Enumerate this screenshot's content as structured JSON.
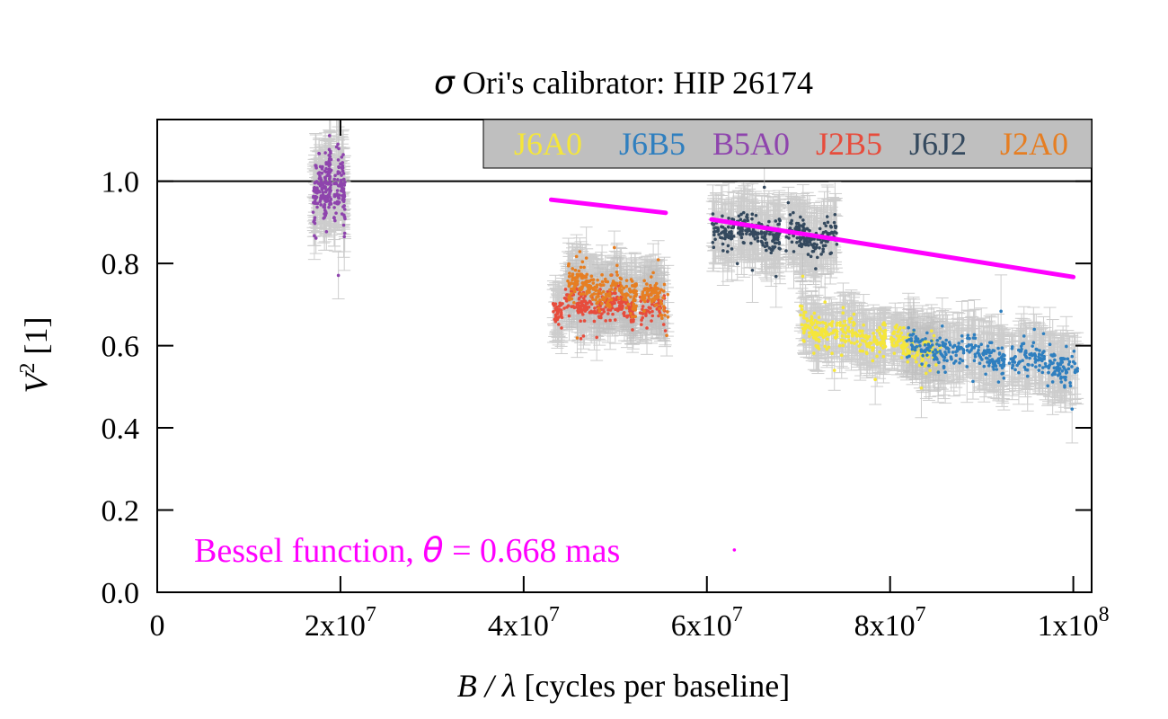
{
  "chart_data": {
    "type": "scatter",
    "title": {
      "symbol": "σ",
      "text": " Ori's calibrator: HIP 26174"
    },
    "xlabel": {
      "symbol": "B / λ",
      "text": " [cycles per baseline]"
    },
    "ylabel": {
      "base": "V",
      "sup": "2",
      "text": " [1]"
    },
    "xlim": [
      0,
      102000000
    ],
    "ylim": [
      0,
      1.15
    ],
    "x_ticks": [
      {
        "value": 0,
        "mantissa": "0",
        "exp": ""
      },
      {
        "value": 20000000,
        "mantissa": "2x10",
        "exp": "7"
      },
      {
        "value": 40000000,
        "mantissa": "4x10",
        "exp": "7"
      },
      {
        "value": 60000000,
        "mantissa": "6x10",
        "exp": "7"
      },
      {
        "value": 80000000,
        "mantissa": "8x10",
        "exp": "7"
      },
      {
        "value": 100000000,
        "mantissa": "1x10",
        "exp": "8"
      }
    ],
    "y_ticks": [
      {
        "value": 0.0,
        "label": "0.0"
      },
      {
        "value": 0.2,
        "label": "0.2"
      },
      {
        "value": 0.4,
        "label": "0.4"
      },
      {
        "value": 0.6,
        "label": "0.6"
      },
      {
        "value": 0.8,
        "label": "0.8"
      },
      {
        "value": 1.0,
        "label": "1.0"
      }
    ],
    "reference_line": {
      "y": 1.0,
      "color": "#000000"
    },
    "grid": false,
    "legend": {
      "placement": "top-right",
      "background": "#bfbfbf",
      "entries": [
        {
          "name": "J6A0",
          "color": "#f5e63a"
        },
        {
          "name": "J6B5",
          "color": "#2f7fbf"
        },
        {
          "name": "B5A0",
          "color": "#8e44ad"
        },
        {
          "name": "J2B5",
          "color": "#e74c3c"
        },
        {
          "name": "J6J2",
          "color": "#34495e"
        },
        {
          "name": "J2A0",
          "color": "#e67e22"
        }
      ]
    },
    "error_bar_color": "#bdbdbd",
    "series": [
      {
        "name": "B5A0",
        "color": "#8e44ad",
        "x_range": [
          17000000,
          20500000
        ],
        "y_start": 0.985,
        "y_end": 0.985,
        "spread": 0.04,
        "err": 0.055,
        "n": 260,
        "seed": 11,
        "gap": [
          19000000,
          19300000
        ]
      },
      {
        "name": "J2B5",
        "color": "#e74c3c",
        "x_range": [
          43200000,
          55500000
        ],
        "y_start": 0.7,
        "y_end": 0.69,
        "spread": 0.018,
        "err": 0.05,
        "n": 320,
        "seed": 23,
        "gap": [
          52000000,
          52700000
        ]
      },
      {
        "name": "J2A0",
        "color": "#e67e22",
        "x_range": [
          44800000,
          55800000
        ],
        "y_start": 0.755,
        "y_end": 0.71,
        "spread": 0.02,
        "err": 0.055,
        "n": 320,
        "seed": 37,
        "gap": [
          52300000,
          52900000
        ]
      },
      {
        "name": "J6J2",
        "color": "#34495e",
        "x_range": [
          60500000,
          74200000
        ],
        "y_start": 0.885,
        "y_end": 0.86,
        "spread": 0.02,
        "err": 0.06,
        "n": 360,
        "seed": 53,
        "gap": [
          68000000,
          68600000
        ]
      },
      {
        "name": "J6A0",
        "color": "#f5e63a",
        "x_range": [
          70200000,
          85500000
        ],
        "y_start": 0.65,
        "y_end": 0.585,
        "spread": 0.02,
        "err": 0.05,
        "n": 360,
        "seed": 71,
        "gap": [
          79500000,
          80000000
        ]
      },
      {
        "name": "J6B5",
        "color": "#2f7fbf",
        "x_range": [
          81800000,
          100500000
        ],
        "y_start": 0.6,
        "y_end": 0.55,
        "spread": 0.018,
        "err": 0.06,
        "n": 380,
        "seed": 89,
        "gap": [
          92500000,
          93000000
        ]
      }
    ],
    "model": {
      "name": "Bessel function",
      "color": "#ff00ff",
      "segments": [
        {
          "x": [
            43000000,
            55500000
          ],
          "y": [
            0.955,
            0.923
          ]
        },
        {
          "x": [
            60500000,
            100000000
          ],
          "y": [
            0.907,
            0.767
          ]
        }
      ],
      "stray_point": {
        "x": 63000000,
        "y": 0.103
      }
    },
    "annotation": {
      "prefix": "Bessel function, ",
      "symbol": "θ",
      "suffix": " = 0.668 mas",
      "color": "#ff00ff",
      "placement": "bottom-left"
    }
  }
}
